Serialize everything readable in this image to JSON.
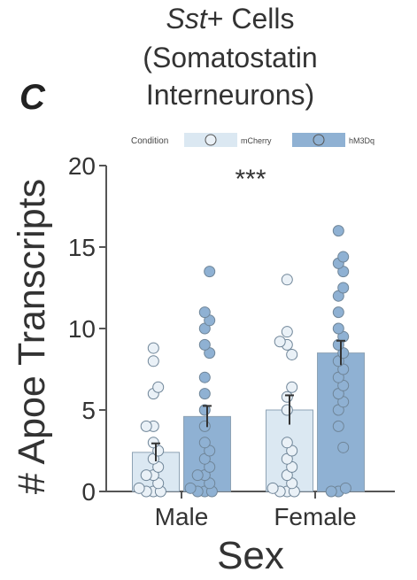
{
  "chart_data": {
    "type": "bar",
    "panel_label": "C",
    "title_italic": "Sst",
    "title_line1_rest": "+ Cells",
    "title_line2": "(Somatostatin",
    "title_line3": "Interneurons)",
    "xlabel": "Sex",
    "ylabel": "# Apoe Transcripts",
    "ylim": [
      0,
      20
    ],
    "yticks": [
      "0",
      "5",
      "10",
      "15",
      "20"
    ],
    "categories": [
      "Male",
      "Female"
    ],
    "legend": {
      "title": "Condition",
      "entries": [
        "mCherry",
        "hM3Dq"
      ]
    },
    "significance": "***",
    "series": [
      {
        "name": "mCherry",
        "color": "#dbe8f2",
        "values": [
          2.4,
          5.0
        ],
        "error": [
          0.55,
          0.9
        ],
        "points": [
          [
            0,
            0,
            0,
            0.2,
            0.5,
            1,
            1,
            1.5,
            2,
            2.5,
            3,
            4,
            4,
            6,
            6.4,
            8,
            8.8
          ],
          [
            0,
            0,
            0,
            0.2,
            0.5,
            1,
            1.5,
            2,
            2.5,
            3,
            5,
            5.8,
            6.4,
            8.4,
            9,
            9.2,
            9.8,
            13
          ]
        ]
      },
      {
        "name": "hM3Dq",
        "color": "#8fb1d3",
        "values": [
          4.6,
          8.5
        ],
        "error": [
          0.65,
          0.75
        ],
        "points": [
          [
            0,
            0,
            0,
            0.2,
            0.5,
            1,
            1,
            1.5,
            2,
            2.5,
            3,
            4,
            5,
            6,
            7,
            8.5,
            9,
            10,
            10.5,
            11,
            13.5
          ],
          [
            0,
            0,
            0.2,
            2.7,
            4,
            5,
            5.5,
            6,
            6.5,
            7,
            7.5,
            8,
            8.5,
            9,
            9.5,
            10,
            11,
            12,
            12.5,
            13.5,
            14,
            14.4,
            16
          ]
        ]
      }
    ]
  }
}
